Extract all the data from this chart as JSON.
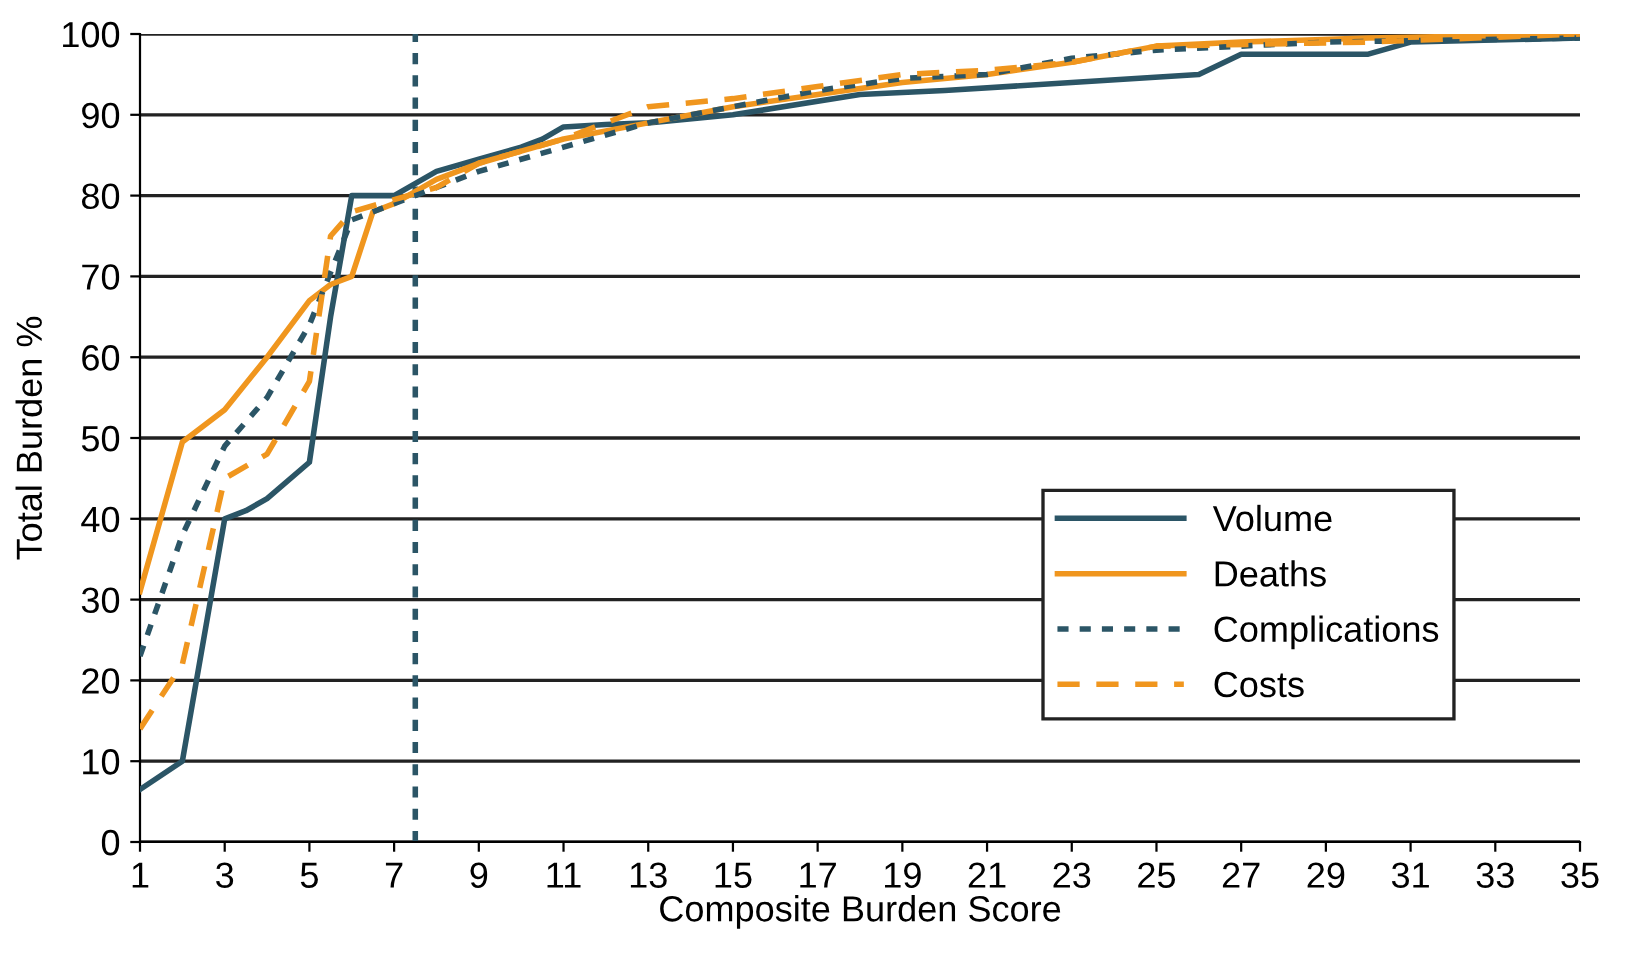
{
  "chart_data": {
    "type": "line",
    "xlabel": "Composite Burden Score",
    "ylabel": "Total Burden %",
    "xlim": [
      1,
      35
    ],
    "xticks": [
      1,
      3,
      5,
      7,
      9,
      11,
      13,
      15,
      17,
      19,
      21,
      23,
      25,
      27,
      29,
      31,
      33,
      35
    ],
    "ylim": [
      0,
      100
    ],
    "yticks": [
      0,
      10,
      20,
      30,
      40,
      50,
      60,
      70,
      80,
      90,
      100
    ],
    "grid": "y",
    "legend": "bottom right",
    "marker": "none",
    "ref_lines": [
      {
        "axis": "x",
        "value": 7.5,
        "color": "#2b5566",
        "line_style": "dotted"
      }
    ],
    "series": [
      {
        "name": "Volume",
        "color": "#2b5566",
        "line_style": "solid",
        "x": [
          1,
          2,
          3,
          3.5,
          4,
          5,
          5.5,
          6,
          7,
          8,
          9,
          10,
          10.5,
          11,
          12,
          13,
          15,
          18,
          20,
          23,
          26,
          27,
          30,
          31,
          35
        ],
        "values": [
          6.5,
          10,
          40,
          41,
          42.5,
          47,
          65,
          80,
          80,
          83,
          84.5,
          86,
          87,
          88.5,
          88.8,
          89,
          90,
          92.5,
          93,
          94,
          95,
          97.5,
          97.5,
          99,
          99.5
        ]
      },
      {
        "name": "Deaths",
        "color": "#f0961e",
        "line_style": "solid",
        "x": [
          1,
          2,
          3,
          4,
          5,
          5.5,
          6,
          6.5,
          7,
          8,
          9,
          10,
          11,
          13,
          15,
          17,
          19,
          21,
          23,
          25,
          27,
          30,
          35
        ],
        "values": [
          31,
          49.5,
          53.5,
          60,
          67,
          69,
          70,
          78,
          79,
          82,
          84,
          85.5,
          87,
          89,
          91,
          92.5,
          94,
          95,
          96.5,
          98.5,
          99,
          99.5,
          100
        ]
      },
      {
        "name": "Complications",
        "color": "#2b5566",
        "line_style": "dotted",
        "x": [
          1,
          2,
          3,
          4,
          5,
          6,
          7,
          8,
          9,
          11,
          13,
          15,
          17,
          19,
          21,
          23,
          25,
          29,
          35
        ],
        "values": [
          23,
          38,
          49,
          55,
          64,
          77,
          79,
          81,
          83,
          86,
          89,
          91,
          93,
          94.5,
          95,
          97,
          98,
          99,
          99.5
        ]
      },
      {
        "name": "Costs",
        "color": "#f0961e",
        "line_style": "dashed",
        "x": [
          1,
          2,
          3,
          4,
          5,
          5.5,
          6,
          7,
          8,
          9,
          11,
          13,
          15,
          17,
          19,
          21,
          23,
          25,
          30,
          35
        ],
        "values": [
          14,
          22,
          45,
          48,
          57,
          75,
          78,
          79.5,
          81,
          84,
          87,
          91,
          92,
          93.5,
          95,
          95.5,
          96.5,
          98.5,
          99,
          100
        ]
      }
    ]
  }
}
